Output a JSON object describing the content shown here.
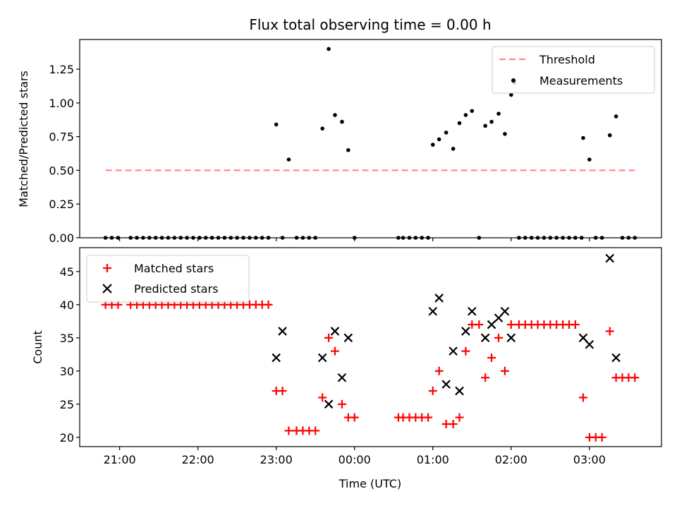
{
  "chart_data": {
    "type": "scatter",
    "title": "Flux total observing time = 0.00 h",
    "shared_x": {
      "xlabel": "Time (UTC)",
      "unit": "hours since 21:00",
      "xlim": [
        -0.51,
        6.92
      ],
      "ticks": [
        0,
        1,
        2,
        3,
        4,
        5,
        6
      ],
      "tick_labels": [
        "21:00",
        "22:00",
        "23:00",
        "00:00",
        "01:00",
        "02:00",
        "03:00"
      ]
    },
    "panels": [
      {
        "name": "ratio",
        "ylabel": "Matched/Predicted stars",
        "ylim": [
          0.0,
          1.47
        ],
        "yticks": [
          0.0,
          0.25,
          0.5,
          0.75,
          1.0,
          1.25
        ],
        "ytick_labels": [
          "0.00",
          "0.25",
          "0.50",
          "0.75",
          "1.00",
          "1.25"
        ],
        "legend": {
          "position": "top-right",
          "entries": [
            "Threshold",
            "Measurements"
          ]
        },
        "threshold": {
          "name": "Threshold",
          "value": 0.5,
          "x_range": [
            -0.18,
            6.58
          ],
          "color": "#ff7f7f"
        },
        "measurements": {
          "name": "Measurements",
          "color": "#000000",
          "points": [
            [
              -0.18,
              0
            ],
            [
              -0.1,
              0
            ],
            [
              -0.02,
              0
            ],
            [
              0.14,
              0
            ],
            [
              0.22,
              0
            ],
            [
              0.3,
              0
            ],
            [
              0.38,
              0
            ],
            [
              0.46,
              0
            ],
            [
              0.54,
              0
            ],
            [
              0.62,
              0
            ],
            [
              0.7,
              0
            ],
            [
              0.78,
              0
            ],
            [
              0.86,
              0
            ],
            [
              0.94,
              0
            ],
            [
              1.02,
              0
            ],
            [
              1.1,
              0
            ],
            [
              1.18,
              0
            ],
            [
              1.26,
              0
            ],
            [
              1.34,
              0
            ],
            [
              1.42,
              0
            ],
            [
              1.5,
              0
            ],
            [
              1.58,
              0
            ],
            [
              1.66,
              0
            ],
            [
              1.74,
              0
            ],
            [
              1.82,
              0
            ],
            [
              1.9,
              0
            ],
            [
              2.0,
              0.84
            ],
            [
              2.08,
              0
            ],
            [
              2.16,
              0.58
            ],
            [
              2.26,
              0
            ],
            [
              2.34,
              0
            ],
            [
              2.42,
              0
            ],
            [
              2.5,
              0
            ],
            [
              2.59,
              0.81
            ],
            [
              2.67,
              1.4
            ],
            [
              2.75,
              0.91
            ],
            [
              2.84,
              0.86
            ],
            [
              2.92,
              0.65
            ],
            [
              3.0,
              0
            ],
            [
              3.56,
              0
            ],
            [
              3.62,
              0
            ],
            [
              3.7,
              0
            ],
            [
              3.78,
              0
            ],
            [
              3.86,
              0
            ],
            [
              3.94,
              0
            ],
            [
              4.0,
              0.69
            ],
            [
              4.08,
              0.73
            ],
            [
              4.17,
              0.78
            ],
            [
              4.26,
              0.66
            ],
            [
              4.34,
              0.85
            ],
            [
              4.42,
              0.91
            ],
            [
              4.5,
              0.94
            ],
            [
              4.59,
              0
            ],
            [
              4.67,
              0.83
            ],
            [
              4.75,
              0.86
            ],
            [
              4.84,
              0.92
            ],
            [
              4.92,
              0.77
            ],
            [
              5.0,
              1.06
            ],
            [
              5.04,
              1.15
            ],
            [
              5.1,
              0
            ],
            [
              5.18,
              0
            ],
            [
              5.26,
              0
            ],
            [
              5.34,
              0
            ],
            [
              5.42,
              0
            ],
            [
              5.5,
              0
            ],
            [
              5.58,
              0
            ],
            [
              5.66,
              0
            ],
            [
              5.74,
              0
            ],
            [
              5.82,
              0
            ],
            [
              5.9,
              0
            ],
            [
              5.92,
              0.74
            ],
            [
              6.0,
              0.58
            ],
            [
              6.08,
              0
            ],
            [
              6.16,
              0
            ],
            [
              6.26,
              0.76
            ],
            [
              6.34,
              0.9
            ],
            [
              6.42,
              0
            ],
            [
              6.5,
              0
            ],
            [
              6.58,
              0
            ]
          ]
        }
      },
      {
        "name": "counts",
        "ylabel": "Count",
        "ylim": [
          18.6,
          48.6
        ],
        "yticks": [
          20,
          25,
          30,
          35,
          40,
          45
        ],
        "ytick_labels": [
          "20",
          "25",
          "30",
          "35",
          "40",
          "45"
        ],
        "legend": {
          "position": "top-left",
          "entries": [
            "Matched stars",
            "Predicted stars"
          ]
        },
        "series": [
          {
            "name": "Matched stars",
            "marker": "+",
            "color": "#ff0000",
            "points": [
              [
                -0.18,
                40
              ],
              [
                -0.1,
                40
              ],
              [
                -0.02,
                40
              ],
              [
                0.14,
                40
              ],
              [
                0.22,
                40
              ],
              [
                0.3,
                40
              ],
              [
                0.38,
                40
              ],
              [
                0.46,
                40
              ],
              [
                0.54,
                40
              ],
              [
                0.62,
                40
              ],
              [
                0.7,
                40
              ],
              [
                0.78,
                40
              ],
              [
                0.86,
                40
              ],
              [
                0.94,
                40
              ],
              [
                1.02,
                40
              ],
              [
                1.1,
                40
              ],
              [
                1.18,
                40
              ],
              [
                1.26,
                40
              ],
              [
                1.34,
                40
              ],
              [
                1.42,
                40
              ],
              [
                1.5,
                40
              ],
              [
                1.58,
                40
              ],
              [
                1.66,
                40
              ],
              [
                1.74,
                40
              ],
              [
                1.82,
                40
              ],
              [
                1.9,
                40
              ],
              [
                2.0,
                27
              ],
              [
                2.08,
                27
              ],
              [
                2.16,
                21
              ],
              [
                2.26,
                21
              ],
              [
                2.34,
                21
              ],
              [
                2.42,
                21
              ],
              [
                2.5,
                21
              ],
              [
                2.59,
                26
              ],
              [
                2.67,
                35
              ],
              [
                2.75,
                33
              ],
              [
                2.84,
                25
              ],
              [
                2.92,
                23
              ],
              [
                3.0,
                23
              ],
              [
                3.56,
                23
              ],
              [
                3.62,
                23
              ],
              [
                3.7,
                23
              ],
              [
                3.78,
                23
              ],
              [
                3.86,
                23
              ],
              [
                3.94,
                23
              ],
              [
                4.0,
                27
              ],
              [
                4.08,
                30
              ],
              [
                4.17,
                22
              ],
              [
                4.26,
                22
              ],
              [
                4.34,
                23
              ],
              [
                4.42,
                33
              ],
              [
                4.5,
                37
              ],
              [
                4.59,
                37
              ],
              [
                4.67,
                29
              ],
              [
                4.75,
                32
              ],
              [
                4.84,
                35
              ],
              [
                4.92,
                30
              ],
              [
                5.0,
                37
              ],
              [
                5.1,
                37
              ],
              [
                5.18,
                37
              ],
              [
                5.26,
                37
              ],
              [
                5.34,
                37
              ],
              [
                5.42,
                37
              ],
              [
                5.5,
                37
              ],
              [
                5.58,
                37
              ],
              [
                5.66,
                37
              ],
              [
                5.74,
                37
              ],
              [
                5.82,
                37
              ],
              [
                5.92,
                26
              ],
              [
                6.0,
                20
              ],
              [
                6.08,
                20
              ],
              [
                6.16,
                20
              ],
              [
                6.26,
                36
              ],
              [
                6.34,
                29
              ],
              [
                6.42,
                29
              ],
              [
                6.5,
                29
              ],
              [
                6.58,
                29
              ]
            ]
          },
          {
            "name": "Predicted stars",
            "marker": "x",
            "color": "#000000",
            "points": [
              [
                2.0,
                32
              ],
              [
                2.08,
                36
              ],
              [
                2.59,
                32
              ],
              [
                2.67,
                25
              ],
              [
                2.75,
                36
              ],
              [
                2.84,
                29
              ],
              [
                2.92,
                35
              ],
              [
                4.0,
                39
              ],
              [
                4.08,
                41
              ],
              [
                4.17,
                28
              ],
              [
                4.26,
                33
              ],
              [
                4.34,
                27
              ],
              [
                4.42,
                36
              ],
              [
                4.5,
                39
              ],
              [
                4.67,
                35
              ],
              [
                4.75,
                37
              ],
              [
                4.84,
                38
              ],
              [
                4.92,
                39
              ],
              [
                5.0,
                35
              ],
              [
                5.92,
                35
              ],
              [
                6.0,
                34
              ],
              [
                6.26,
                47
              ],
              [
                6.34,
                32
              ]
            ]
          }
        ]
      }
    ]
  }
}
